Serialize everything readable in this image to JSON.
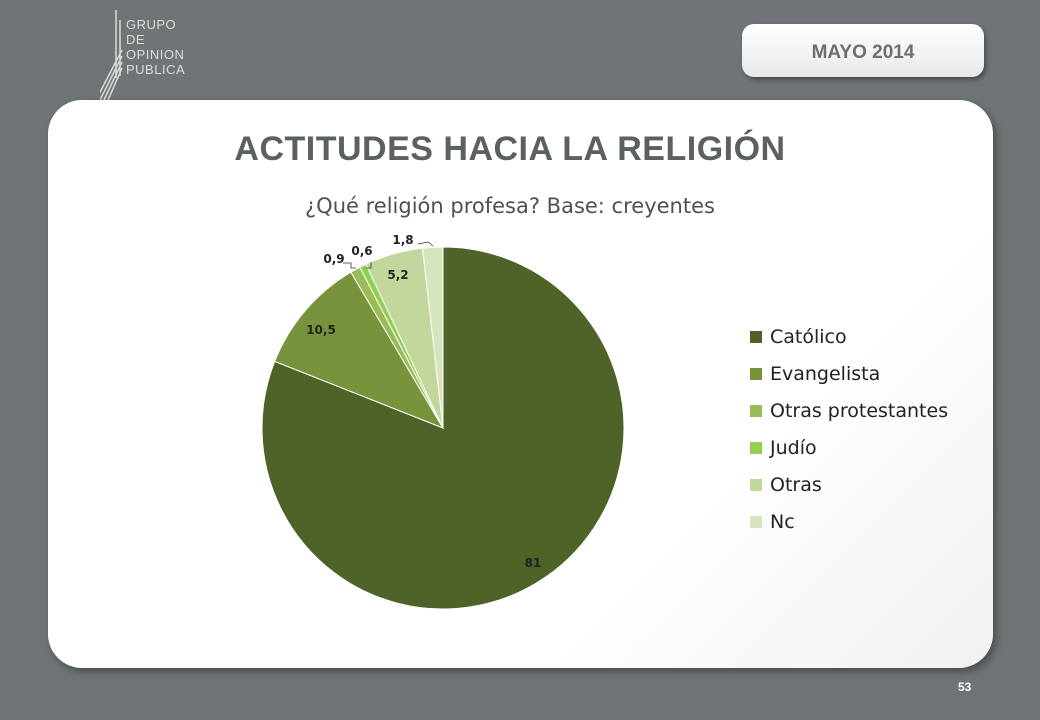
{
  "logo": {
    "lines": [
      "GRUPO",
      "DE",
      "OPINION",
      "PUBLICA"
    ]
  },
  "date_badge": "MAYO 2014",
  "page_number": "53",
  "chart_data": {
    "type": "pie",
    "title": "ACTITUDES HACIA LA RELIGIÓN",
    "subtitle": "¿Qué religión profesa?  Base: creyentes",
    "legend_position": "right",
    "slices": [
      {
        "label": "Católico",
        "value": 81,
        "display": "81",
        "color": "#4f6228"
      },
      {
        "label": "Evangelista",
        "value": 10.5,
        "display": "10,5",
        "color": "#77933c"
      },
      {
        "label": "Otras protestantes",
        "value": 0.9,
        "display": "0,9",
        "color": "#9bbb59"
      },
      {
        "label": "Judío",
        "value": 0.6,
        "display": "0,6",
        "color": "#92d050"
      },
      {
        "label": "Otras",
        "value": 5.2,
        "display": "5,2",
        "color": "#c3d69b"
      },
      {
        "label": "Nc",
        "value": 1.8,
        "display": "1,8",
        "color": "#d7e4bd"
      }
    ]
  }
}
